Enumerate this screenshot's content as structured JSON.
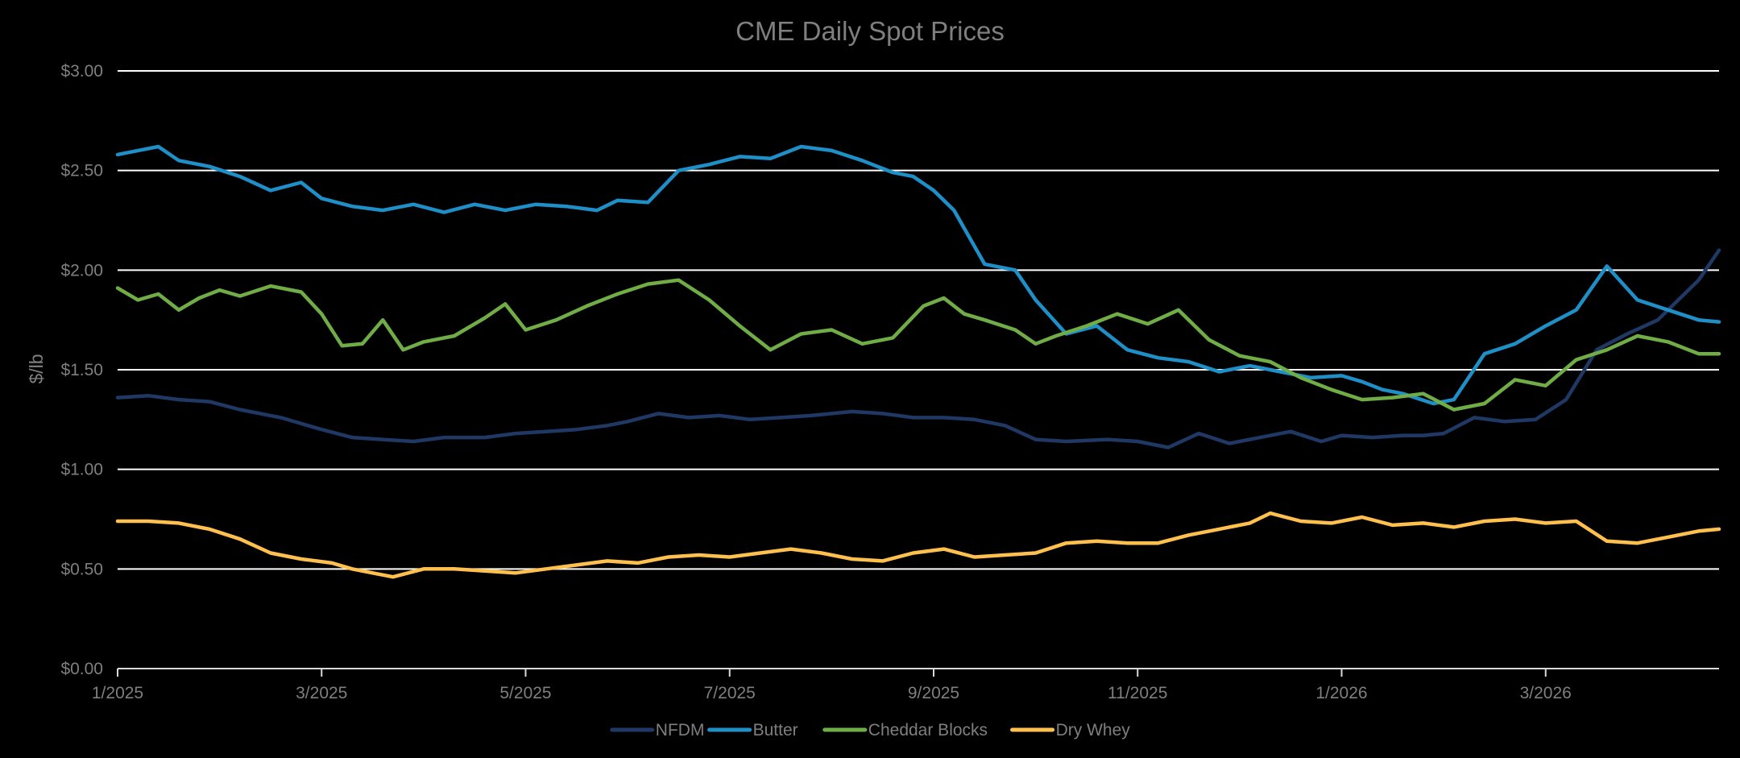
{
  "chart_data": {
    "type": "line",
    "title": "CME Daily Spot Prices",
    "xlabel": "",
    "ylabel": "$/lb",
    "ylim": [
      0,
      3
    ],
    "yticks": [
      0,
      0.5,
      1.0,
      1.5,
      2.0,
      2.5,
      3.0
    ],
    "ytick_labels": [
      "$0.00",
      "$0.50",
      "$1.00",
      "$1.50",
      "$2.00",
      "$2.50",
      "$3.00"
    ],
    "xlim": [
      0,
      15.7
    ],
    "xticks": [
      0,
      2,
      4,
      6,
      8,
      10,
      12,
      14
    ],
    "xtick_labels": [
      "1/2025",
      "3/2025",
      "5/2025",
      "7/2025",
      "9/2025",
      "11/2025",
      "1/2026",
      "3/2026"
    ],
    "grid": true,
    "legend_position": "bottom-center",
    "series": [
      {
        "name": "NFDM",
        "color": "#1f3864",
        "x": [
          0,
          0.3,
          0.6,
          0.9,
          1.2,
          1.6,
          2.0,
          2.3,
          2.6,
          2.9,
          3.2,
          3.6,
          3.9,
          4.2,
          4.5,
          4.8,
          5.0,
          5.3,
          5.6,
          5.9,
          6.2,
          6.5,
          6.8,
          7.2,
          7.5,
          7.8,
          8.1,
          8.4,
          8.7,
          9.0,
          9.3,
          9.7,
          10.0,
          10.3,
          10.6,
          10.9,
          11.2,
          11.5,
          11.8,
          12.0,
          12.3,
          12.6,
          12.8,
          13.0,
          13.3,
          13.6,
          13.9,
          14.2,
          14.5,
          14.8,
          15.1,
          15.3,
          15.5,
          15.7
        ],
        "values": [
          1.36,
          1.37,
          1.35,
          1.34,
          1.3,
          1.26,
          1.2,
          1.16,
          1.15,
          1.14,
          1.16,
          1.16,
          1.18,
          1.19,
          1.2,
          1.22,
          1.24,
          1.28,
          1.26,
          1.27,
          1.25,
          1.26,
          1.27,
          1.29,
          1.28,
          1.26,
          1.26,
          1.25,
          1.22,
          1.15,
          1.14,
          1.15,
          1.14,
          1.11,
          1.18,
          1.13,
          1.16,
          1.19,
          1.14,
          1.17,
          1.16,
          1.17,
          1.17,
          1.18,
          1.26,
          1.24,
          1.25,
          1.35,
          1.6,
          1.68,
          1.75,
          1.85,
          1.95,
          2.1
        ]
      },
      {
        "name": "Butter",
        "color": "#1f8fc8",
        "x": [
          0,
          0.2,
          0.4,
          0.6,
          0.9,
          1.2,
          1.5,
          1.8,
          2.0,
          2.3,
          2.6,
          2.9,
          3.2,
          3.5,
          3.8,
          4.1,
          4.4,
          4.7,
          4.9,
          5.2,
          5.5,
          5.8,
          6.1,
          6.4,
          6.7,
          7.0,
          7.3,
          7.6,
          7.8,
          8.0,
          8.2,
          8.5,
          8.8,
          9.0,
          9.3,
          9.6,
          9.9,
          10.2,
          10.5,
          10.8,
          11.1,
          11.4,
          11.7,
          12.0,
          12.2,
          12.4,
          12.6,
          12.9,
          13.1,
          13.4,
          13.7,
          14.0,
          14.3,
          14.6,
          14.9,
          15.2,
          15.5,
          15.7
        ],
        "values": [
          2.58,
          2.6,
          2.62,
          2.55,
          2.52,
          2.47,
          2.4,
          2.44,
          2.36,
          2.32,
          2.3,
          2.33,
          2.29,
          2.33,
          2.3,
          2.33,
          2.32,
          2.3,
          2.35,
          2.34,
          2.5,
          2.53,
          2.57,
          2.56,
          2.62,
          2.6,
          2.55,
          2.49,
          2.47,
          2.4,
          2.3,
          2.03,
          2.0,
          1.85,
          1.68,
          1.72,
          1.6,
          1.56,
          1.54,
          1.49,
          1.52,
          1.49,
          1.46,
          1.47,
          1.44,
          1.4,
          1.38,
          1.33,
          1.35,
          1.58,
          1.63,
          1.72,
          1.8,
          2.02,
          1.85,
          1.8,
          1.75,
          1.74
        ]
      },
      {
        "name": "Cheddar Blocks",
        "color": "#70ad47",
        "x": [
          0,
          0.2,
          0.4,
          0.6,
          0.8,
          1.0,
          1.2,
          1.5,
          1.8,
          2.0,
          2.2,
          2.4,
          2.6,
          2.8,
          3.0,
          3.3,
          3.6,
          3.8,
          4.0,
          4.3,
          4.6,
          4.9,
          5.2,
          5.5,
          5.8,
          6.1,
          6.4,
          6.7,
          7.0,
          7.3,
          7.6,
          7.9,
          8.1,
          8.3,
          8.5,
          8.8,
          9.0,
          9.2,
          9.5,
          9.8,
          10.1,
          10.4,
          10.7,
          11.0,
          11.3,
          11.6,
          11.9,
          12.2,
          12.5,
          12.8,
          13.1,
          13.4,
          13.7,
          14.0,
          14.3,
          14.6,
          14.9,
          15.2,
          15.5,
          15.7
        ],
        "values": [
          1.91,
          1.85,
          1.88,
          1.8,
          1.86,
          1.9,
          1.87,
          1.92,
          1.89,
          1.78,
          1.62,
          1.63,
          1.75,
          1.6,
          1.64,
          1.67,
          1.76,
          1.83,
          1.7,
          1.75,
          1.82,
          1.88,
          1.93,
          1.95,
          1.85,
          1.72,
          1.6,
          1.68,
          1.7,
          1.63,
          1.66,
          1.82,
          1.86,
          1.78,
          1.75,
          1.7,
          1.63,
          1.67,
          1.72,
          1.78,
          1.73,
          1.8,
          1.65,
          1.57,
          1.54,
          1.46,
          1.4,
          1.35,
          1.36,
          1.38,
          1.3,
          1.33,
          1.45,
          1.42,
          1.55,
          1.6,
          1.67,
          1.64,
          1.58,
          1.58
        ]
      },
      {
        "name": "Dry Whey",
        "color": "#ffc04d",
        "x": [
          0,
          0.3,
          0.6,
          0.9,
          1.2,
          1.5,
          1.8,
          2.1,
          2.3,
          2.5,
          2.7,
          3.0,
          3.3,
          3.6,
          3.9,
          4.2,
          4.5,
          4.8,
          5.1,
          5.4,
          5.7,
          6.0,
          6.3,
          6.6,
          6.9,
          7.2,
          7.5,
          7.8,
          8.1,
          8.4,
          8.7,
          9.0,
          9.3,
          9.6,
          9.9,
          10.2,
          10.5,
          10.8,
          11.1,
          11.3,
          11.6,
          11.9,
          12.2,
          12.5,
          12.8,
          13.1,
          13.4,
          13.7,
          14.0,
          14.3,
          14.6,
          14.9,
          15.2,
          15.5,
          15.7
        ],
        "values": [
          0.74,
          0.74,
          0.73,
          0.7,
          0.65,
          0.58,
          0.55,
          0.53,
          0.5,
          0.48,
          0.46,
          0.5,
          0.5,
          0.49,
          0.48,
          0.5,
          0.52,
          0.54,
          0.53,
          0.56,
          0.57,
          0.56,
          0.58,
          0.6,
          0.58,
          0.55,
          0.54,
          0.58,
          0.6,
          0.56,
          0.57,
          0.58,
          0.63,
          0.64,
          0.63,
          0.63,
          0.67,
          0.7,
          0.73,
          0.78,
          0.74,
          0.73,
          0.76,
          0.72,
          0.73,
          0.71,
          0.74,
          0.75,
          0.73,
          0.74,
          0.64,
          0.63,
          0.66,
          0.69,
          0.7
        ]
      }
    ]
  }
}
